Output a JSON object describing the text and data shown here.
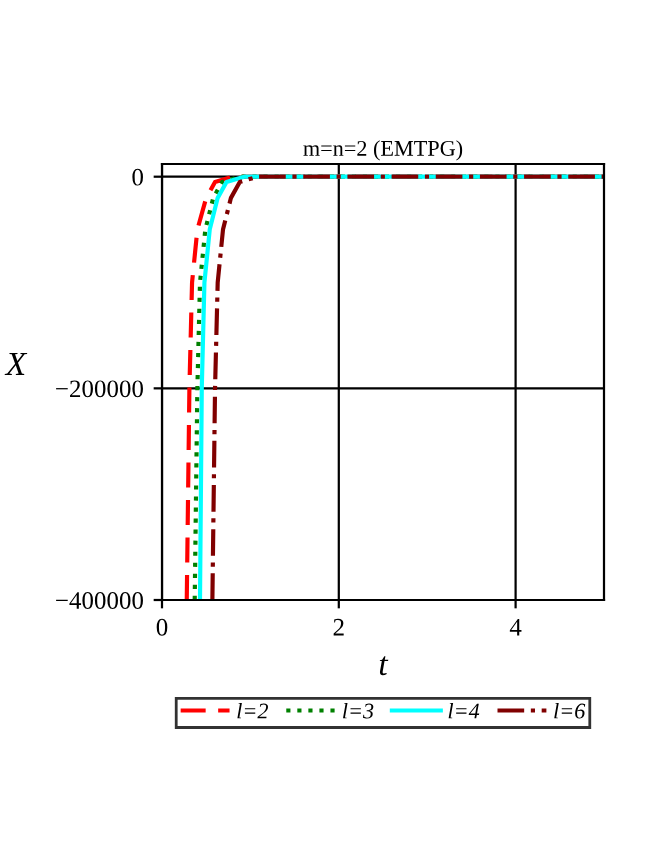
{
  "chart_data": {
    "type": "line",
    "title": "m=n=2 (EMTPG)",
    "xlabel": "t",
    "ylabel": "X",
    "xlim": [
      0,
      5
    ],
    "ylim": [
      -400000,
      12000
    ],
    "xticks": [
      0,
      2,
      4
    ],
    "yticks": [
      {
        "value": -400000,
        "label": "−400000"
      },
      {
        "value": -200000,
        "label": "−200000"
      },
      0
    ],
    "grid": true,
    "legend": "bottom",
    "marker": "none",
    "series": [
      {
        "name": "l=2",
        "color": "#ff0000",
        "line_style": "dashed",
        "x": [
          0.28,
          0.31,
          0.34,
          0.4,
          0.5,
          0.6,
          0.8,
          1.2,
          5
        ],
        "values": [
          -400000,
          -200000,
          -100000,
          -50000,
          -20000,
          -5000,
          0,
          0,
          0
        ]
      },
      {
        "name": "l=3",
        "color": "#008000",
        "line_style": "dotted",
        "x": [
          0.37,
          0.4,
          0.43,
          0.49,
          0.58,
          0.68,
          0.88,
          1.3,
          5
        ],
        "values": [
          -400000,
          -200000,
          -100000,
          -50000,
          -20000,
          -5000,
          0,
          0,
          0
        ]
      },
      {
        "name": "l=4",
        "color": "#00ffff",
        "line_style": "solid",
        "x": [
          0.43,
          0.45,
          0.48,
          0.54,
          0.63,
          0.73,
          0.93,
          1.35,
          5
        ],
        "values": [
          -400000,
          -200000,
          -100000,
          -50000,
          -20000,
          -5000,
          0,
          0,
          0
        ]
      },
      {
        "name": "l=6",
        "color": "#800000",
        "line_style": "dashdot",
        "x": [
          0.57,
          0.6,
          0.63,
          0.69,
          0.78,
          0.88,
          1.08,
          1.5,
          5
        ],
        "values": [
          -400000,
          -200000,
          -100000,
          -50000,
          -20000,
          -5000,
          0,
          0,
          0
        ]
      }
    ]
  }
}
